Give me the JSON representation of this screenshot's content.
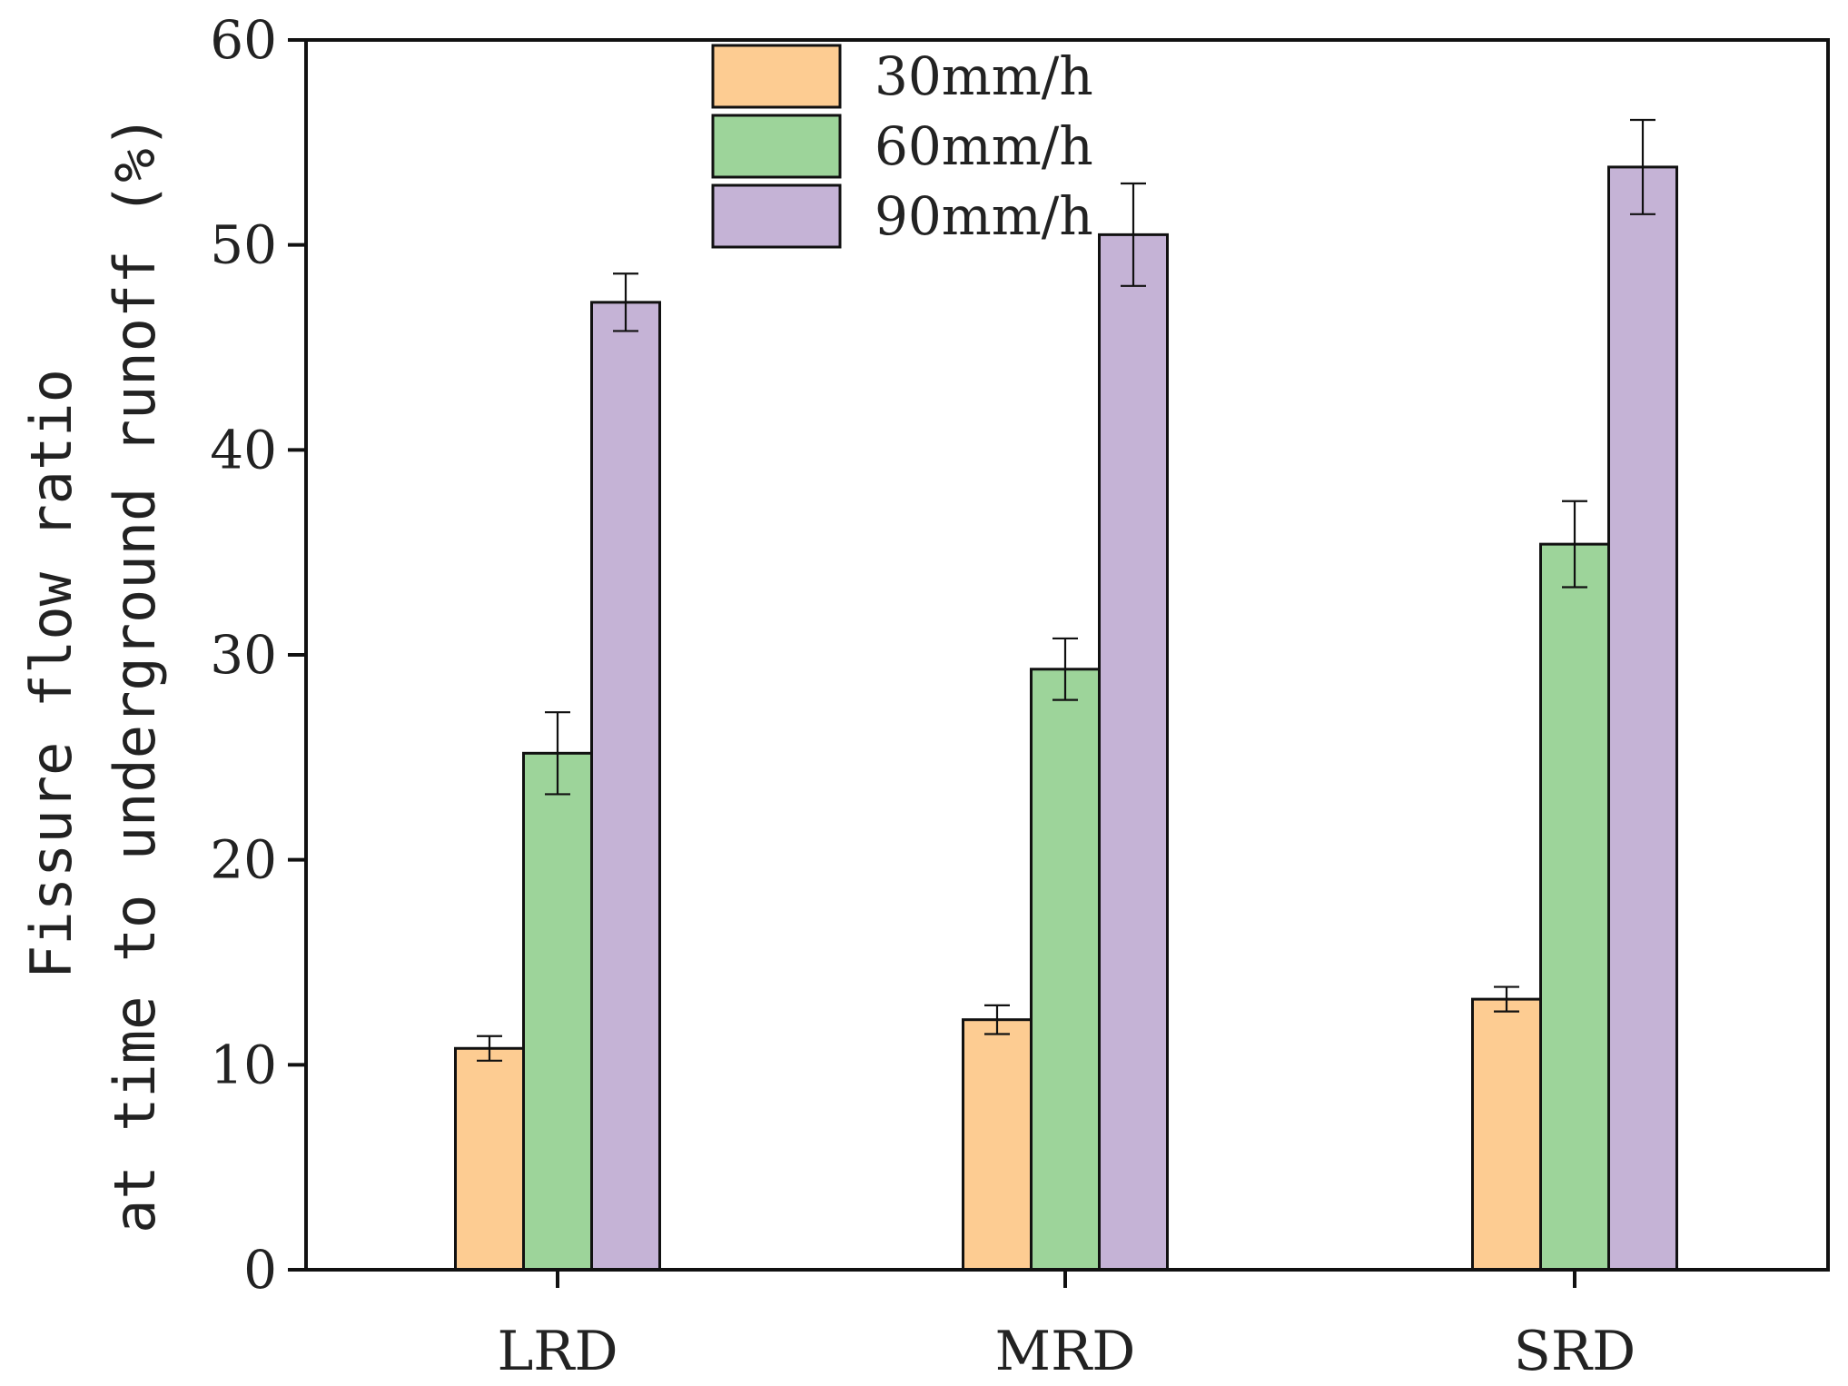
{
  "chart_data": {
    "type": "bar",
    "title": "",
    "xlabel": "",
    "ylabel_lines": [
      "Fissure flow ratio",
      "at time to underground runoff (%)"
    ],
    "categories": [
      "LRD",
      "MRD",
      "SRD"
    ],
    "ylim": [
      0,
      60
    ],
    "yticks": [
      0,
      10,
      20,
      30,
      40,
      50,
      60
    ],
    "grid": false,
    "legend_position": "top-center",
    "series": [
      {
        "name": "30mm/h",
        "color": "#FDCC92",
        "values": [
          10.8,
          12.2,
          13.2
        ],
        "errors": [
          0.6,
          0.7,
          0.6
        ]
      },
      {
        "name": "60mm/h",
        "color": "#9DD49A",
        "values": [
          25.2,
          29.3,
          35.4
        ],
        "errors": [
          2.0,
          1.5,
          2.1
        ]
      },
      {
        "name": "90mm/h",
        "color": "#C5B3D6",
        "values": [
          47.2,
          50.5,
          53.8
        ],
        "errors": [
          1.4,
          2.5,
          2.3
        ]
      }
    ]
  }
}
